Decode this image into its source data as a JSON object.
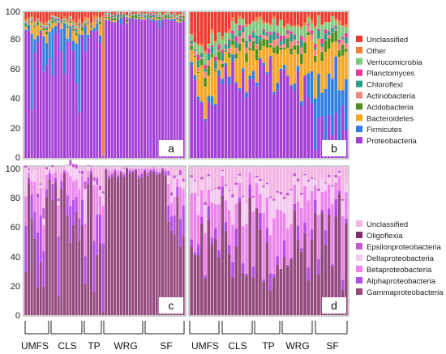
{
  "chart_data": [
    {
      "panel": "a",
      "type": "bar",
      "stacked": true,
      "ylim": [
        0,
        100
      ],
      "yticks": [
        "0",
        "20",
        "40",
        "60",
        "80",
        "100"
      ],
      "n_bars": 54,
      "legend": [
        {
          "label": "Unclassified",
          "color": "#ee3b2f"
        },
        {
          "label": "Other",
          "color": "#f07f3b"
        },
        {
          "label": "Verrucomicrobia",
          "color": "#7fc97f"
        },
        {
          "label": "Planctomyces",
          "color": "#e8399b"
        },
        {
          "label": "Chloroflexi",
          "color": "#2a9c8c"
        },
        {
          "label": "Actinobacteria",
          "color": "#f2877f"
        },
        {
          "label": "Acidobacteria",
          "color": "#4f8f1d"
        },
        {
          "label": "Bacteroidetes",
          "color": "#f5a623"
        },
        {
          "label": "Firmicutes",
          "color": "#2f7fe0"
        },
        {
          "label": "Proteobacteria",
          "color": "#a43fd6"
        }
      ],
      "series_note": "Each bar is composed of taxa percentages summing to 100; Proteobacteria dominates most samples, one TP sample is mostly Other."
    },
    {
      "panel": "b",
      "type": "bar",
      "stacked": true,
      "ylim": [
        0,
        100
      ],
      "n_bars": 46
    },
    {
      "panel": "c",
      "type": "bar",
      "stacked": true,
      "ylim": [
        0,
        100
      ],
      "yticks": [
        "0",
        "20",
        "40",
        "60",
        "80",
        "100"
      ],
      "n_bars": 54,
      "legend": [
        {
          "label": "Unclassified",
          "color": "#f3b3e3"
        },
        {
          "label": "Oligoflexia",
          "color": "#7b2f6b"
        },
        {
          "label": "Epsilonproteobacteria",
          "color": "#c05ad0"
        },
        {
          "label": "Deltaproteobacteria",
          "color": "#f5c8f0"
        },
        {
          "label": "Betaproteobacteria",
          "color": "#ec84ec"
        },
        {
          "label": "Alphaproteobacteria",
          "color": "#b64ce8"
        },
        {
          "label": "Gammaproteobacteria",
          "color": "#93487e"
        }
      ]
    },
    {
      "panel": "d",
      "type": "bar",
      "stacked": true,
      "ylim": [
        0,
        100
      ],
      "n_bars": 46
    }
  ],
  "groups_left": [
    "UMFS",
    "CLS",
    "TP",
    "WRG",
    "SF"
  ],
  "groups_right": [
    "UMFS",
    "CLS",
    "TP",
    "WRG",
    "SF"
  ],
  "panel_labels": [
    "a",
    "b",
    "c",
    "d"
  ]
}
